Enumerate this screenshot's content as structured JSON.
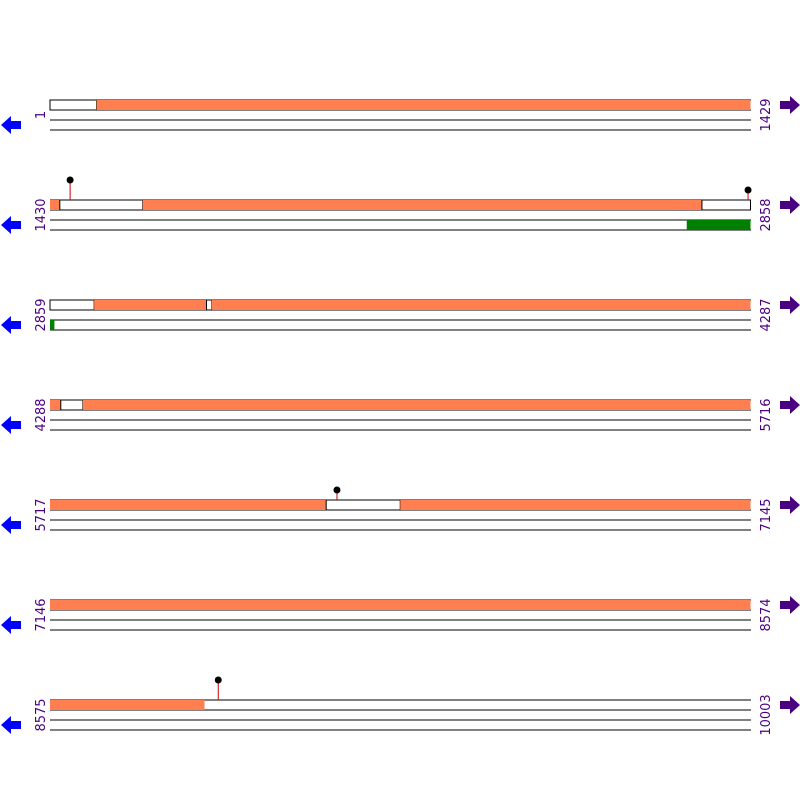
{
  "colors": {
    "feature": "#ff7f50",
    "strand_feature": "#008000",
    "marker_stem": "#cc0000",
    "marker_head": "#000000",
    "left_arrow": "#0000ff",
    "right_arrow": "#4b0082",
    "row_number": "#4b0082"
  },
  "icons": {
    "left": "left-arrow-icon",
    "right": "right-arrow-icon"
  },
  "rows": [
    {
      "start": "1",
      "end": "1429",
      "segments": [
        {
          "from": 1,
          "to": 96,
          "fill": false
        },
        {
          "from": 96,
          "to": 1429,
          "fill": true
        }
      ],
      "strand_blocks": [],
      "markers": []
    },
    {
      "start": "1430",
      "end": "2858",
      "segments": [
        {
          "from": 1430,
          "to": 1450,
          "fill": true
        },
        {
          "from": 1450,
          "to": 1619,
          "fill": false
        },
        {
          "from": 1619,
          "to": 2759,
          "fill": true
        },
        {
          "from": 2759,
          "to": 2858,
          "fill": false
        }
      ],
      "strand_blocks": [
        {
          "from": 2728,
          "to": 2858
        }
      ],
      "markers": [
        {
          "pos": 1471,
          "level": "tall"
        },
        {
          "pos": 2853,
          "level": "short"
        }
      ]
    },
    {
      "start": "2859",
      "end": "4287",
      "segments": [
        {
          "from": 2859,
          "to": 2949,
          "fill": false
        },
        {
          "from": 2949,
          "to": 3178,
          "fill": true
        },
        {
          "from": 3178,
          "to": 3189,
          "fill": false
        },
        {
          "from": 3189,
          "to": 4287,
          "fill": true
        }
      ],
      "strand_blocks": [
        {
          "from": 2859,
          "to": 2868
        }
      ],
      "markers": []
    },
    {
      "start": "4288",
      "end": "5716",
      "segments": [
        {
          "from": 4288,
          "to": 4310,
          "fill": true
        },
        {
          "from": 4310,
          "to": 4355,
          "fill": false
        },
        {
          "from": 4355,
          "to": 5716,
          "fill": true
        }
      ],
      "strand_blocks": [],
      "markers": []
    },
    {
      "start": "5717",
      "end": "7145",
      "segments": [
        {
          "from": 5717,
          "to": 6280,
          "fill": true
        },
        {
          "from": 6280,
          "to": 6431,
          "fill": false
        },
        {
          "from": 6431,
          "to": 7145,
          "fill": true
        }
      ],
      "strand_blocks": [],
      "markers": [
        {
          "pos": 6302,
          "level": "short"
        }
      ]
    },
    {
      "start": "7146",
      "end": "8574",
      "segments": [
        {
          "from": 7146,
          "to": 8574,
          "fill": true
        }
      ],
      "strand_blocks": [],
      "markers": []
    },
    {
      "start": "8575",
      "end": "10003",
      "segments": [
        {
          "from": 8575,
          "to": 8890,
          "fill": true
        }
      ],
      "strand_blocks": [],
      "markers": [
        {
          "pos": 8918,
          "level": "tall"
        }
      ]
    }
  ]
}
